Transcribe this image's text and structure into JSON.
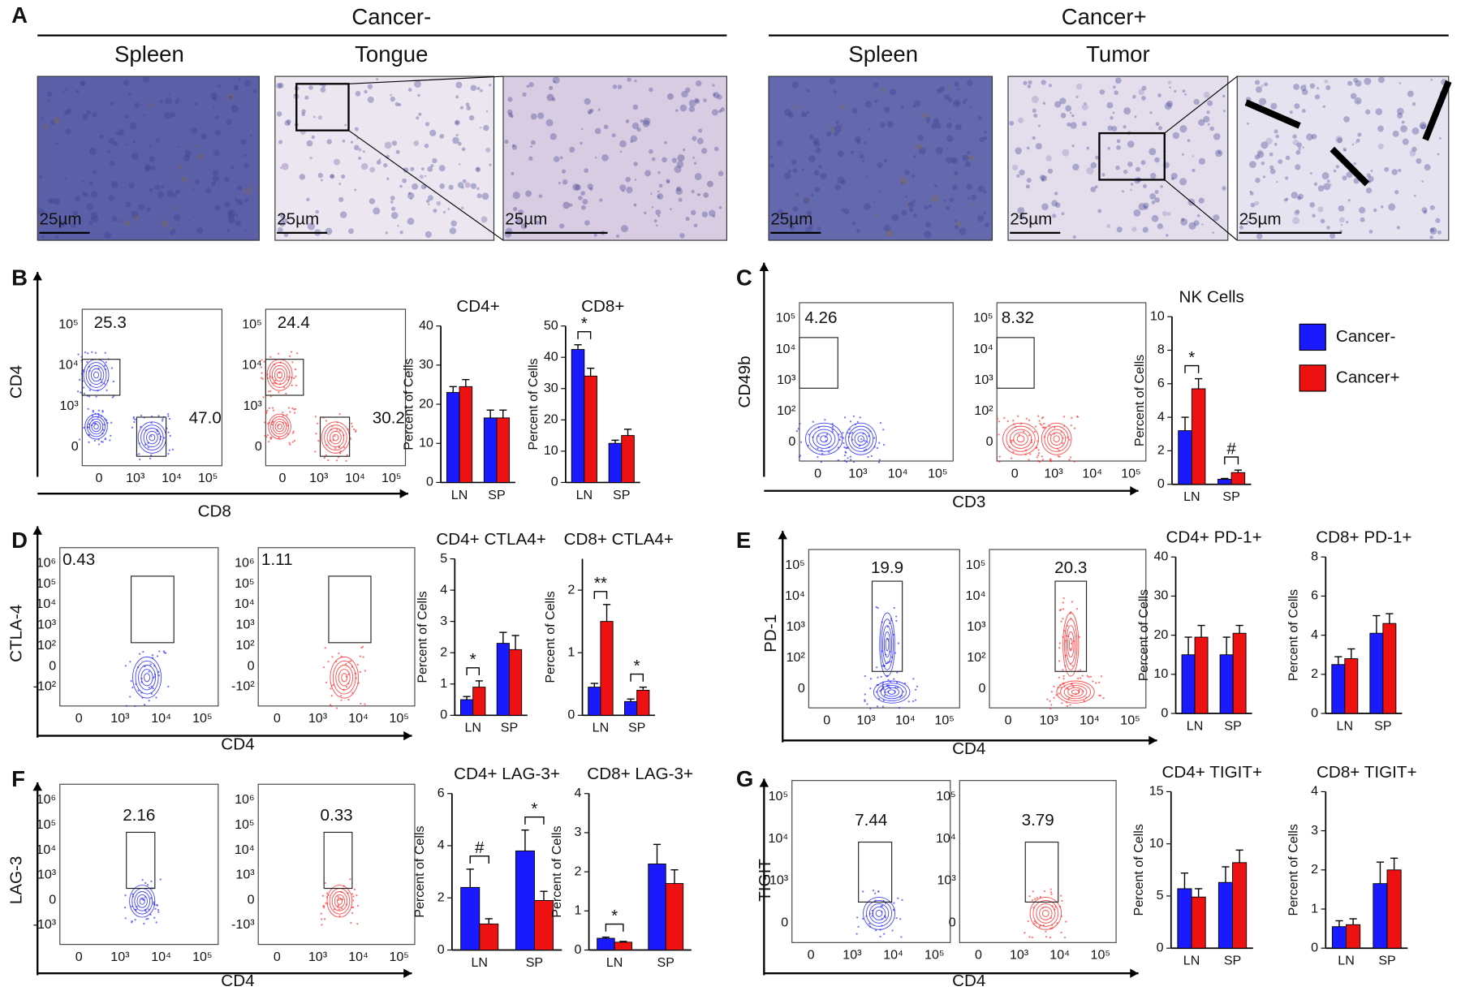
{
  "histology": {
    "label": "A",
    "groups": [
      {
        "title": "Cancer-",
        "tissues": [
          "Spleen",
          "Tongue"
        ]
      },
      {
        "title": "Cancer+",
        "tissues": [
          "Spleen",
          "Tumor"
        ]
      }
    ],
    "scale_bar": "25µm"
  },
  "flow_panels": [
    {
      "label": "B",
      "ylabel": "CD4",
      "xlabel": "CD8",
      "yticks": [
        "10⁵",
        "10⁴",
        "10³",
        "0"
      ],
      "xticks": [
        "0",
        "10³",
        "10⁴",
        "10⁵"
      ],
      "plots": [
        {
          "color": "#1a1aff",
          "gates": [
            "25.3",
            "47.0"
          ]
        },
        {
          "color": "#ff2020",
          "gates": [
            "24.4",
            "30.2"
          ]
        }
      ]
    },
    {
      "label": "C",
      "ylabel": "CD49b",
      "xlabel": "CD3",
      "yticks": [
        "10⁵",
        "10⁴",
        "10³",
        "10²",
        "0"
      ],
      "xticks": [
        "0",
        "10³",
        "10⁴",
        "10⁵"
      ],
      "plots": [
        {
          "color": "#1a1aff",
          "gates": [
            "4.26"
          ]
        },
        {
          "color": "#ff2020",
          "gates": [
            "8.32"
          ]
        }
      ]
    },
    {
      "label": "D",
      "ylabel": "CTLA-4",
      "xlabel": "CD4",
      "yticks": [
        "10⁶",
        "10⁵",
        "10⁴",
        "10³",
        "10²",
        "0",
        "-10²"
      ],
      "xticks": [
        "0",
        "10³",
        "10⁴",
        "10⁵"
      ],
      "plots": [
        {
          "color": "#1a1aff",
          "gates": [
            "0.43"
          ]
        },
        {
          "color": "#ff2020",
          "gates": [
            "1.11"
          ]
        }
      ]
    },
    {
      "label": "E",
      "ylabel": "PD-1",
      "xlabel": "CD4",
      "yticks": [
        "10⁵",
        "10⁴",
        "10³",
        "10²",
        "0"
      ],
      "xticks": [
        "0",
        "10³",
        "10⁴",
        "10⁵"
      ],
      "plots": [
        {
          "color": "#1a1aff",
          "gates": [
            "19.9"
          ]
        },
        {
          "color": "#ff2020",
          "gates": [
            "20.3"
          ]
        }
      ]
    },
    {
      "label": "F",
      "ylabel": "LAG-3",
      "xlabel": "CD4",
      "yticks": [
        "10⁶",
        "10⁵",
        "10⁴",
        "10³",
        "0",
        "-10³"
      ],
      "xticks": [
        "0",
        "10³",
        "10⁴",
        "10⁵"
      ],
      "plots": [
        {
          "color": "#1a1aff",
          "gates": [
            "2.16"
          ]
        },
        {
          "color": "#ff2020",
          "gates": [
            "0.33"
          ]
        }
      ]
    },
    {
      "label": "G",
      "ylabel": "TIGIT",
      "xlabel": "CD4",
      "yticks": [
        "10⁵",
        "10⁴",
        "10³",
        "0"
      ],
      "xticks": [
        "0",
        "10³",
        "10⁴",
        "10⁵"
      ],
      "plots": [
        {
          "color": "#1a1aff",
          "gates": [
            "7.44"
          ]
        },
        {
          "color": "#ff2020",
          "gates": [
            "3.79"
          ]
        }
      ]
    }
  ],
  "chart_data": [
    {
      "type": "bar",
      "title": "CD4+",
      "ylabel": "Percent of Cells",
      "categories": [
        "LN",
        "SP"
      ],
      "ylim": [
        0,
        40
      ],
      "yticks": [
        0,
        10,
        20,
        30,
        40
      ],
      "annotations": [
        null,
        null
      ],
      "series": [
        {
          "name": "Cancer-",
          "color": "#1a1aff",
          "values": [
            23,
            16.5
          ],
          "errors": [
            1.5,
            2
          ]
        },
        {
          "name": "Cancer+",
          "color": "#ee1111",
          "values": [
            24.5,
            16.5
          ],
          "errors": [
            1.8,
            2
          ]
        }
      ]
    },
    {
      "type": "bar",
      "title": "CD8+",
      "ylabel": "Percent of Cells",
      "categories": [
        "LN",
        "SP"
      ],
      "ylim": [
        0,
        50
      ],
      "yticks": [
        0,
        10,
        20,
        30,
        40,
        50
      ],
      "annotations": [
        "*",
        null
      ],
      "series": [
        {
          "name": "Cancer-",
          "color": "#1a1aff",
          "values": [
            42.5,
            12.5
          ],
          "errors": [
            1.5,
            1
          ]
        },
        {
          "name": "Cancer+",
          "color": "#ee1111",
          "values": [
            34,
            15
          ],
          "errors": [
            2.5,
            2
          ]
        }
      ]
    },
    {
      "type": "bar",
      "title": "NK Cells",
      "ylabel": "Percent of Cells",
      "categories": [
        "LN",
        "SP"
      ],
      "ylim": [
        0,
        10
      ],
      "yticks": [
        0,
        2,
        4,
        6,
        8,
        10
      ],
      "annotations": [
        "*",
        "#"
      ],
      "series": [
        {
          "name": "Cancer-",
          "color": "#1a1aff",
          "values": [
            3.2,
            0.3
          ],
          "errors": [
            0.8,
            0.05
          ]
        },
        {
          "name": "Cancer+",
          "color": "#ee1111",
          "values": [
            5.7,
            0.7
          ],
          "errors": [
            0.6,
            0.15
          ]
        }
      ]
    },
    {
      "type": "bar",
      "title": "CD4+ CTLA4+",
      "ylabel": "Percent of Cells",
      "categories": [
        "LN",
        "SP"
      ],
      "ylim": [
        0,
        5
      ],
      "yticks": [
        0,
        1,
        2,
        3,
        4,
        5
      ],
      "annotations": [
        "*",
        null
      ],
      "series": [
        {
          "name": "Cancer-",
          "color": "#1a1aff",
          "values": [
            0.5,
            2.3
          ],
          "errors": [
            0.1,
            0.35
          ]
        },
        {
          "name": "Cancer+",
          "color": "#ee1111",
          "values": [
            0.9,
            2.1
          ],
          "errors": [
            0.2,
            0.45
          ]
        }
      ]
    },
    {
      "type": "bar",
      "title": "CD8+ CTLA4+",
      "ylabel": "Percent of Cells",
      "categories": [
        "LN",
        "SP"
      ],
      "ylim": [
        0,
        2.5
      ],
      "yticks": [
        0,
        1,
        2
      ],
      "annotations": [
        "**",
        "*"
      ],
      "series": [
        {
          "name": "Cancer-",
          "color": "#1a1aff",
          "values": [
            0.45,
            0.22
          ],
          "errors": [
            0.06,
            0.04
          ]
        },
        {
          "name": "Cancer+",
          "color": "#ee1111",
          "values": [
            1.5,
            0.4
          ],
          "errors": [
            0.27,
            0.05
          ]
        }
      ]
    },
    {
      "type": "bar",
      "title": "CD4+ PD-1+",
      "ylabel": "Percent of Cells",
      "categories": [
        "LN",
        "SP"
      ],
      "ylim": [
        0,
        40
      ],
      "yticks": [
        0,
        10,
        20,
        30,
        40
      ],
      "annotations": [
        null,
        null
      ],
      "series": [
        {
          "name": "Cancer-",
          "color": "#1a1aff",
          "values": [
            15,
            15
          ],
          "errors": [
            4.5,
            4.5
          ]
        },
        {
          "name": "Cancer+",
          "color": "#ee1111",
          "values": [
            19.5,
            20.5
          ],
          "errors": [
            3,
            2
          ]
        }
      ]
    },
    {
      "type": "bar",
      "title": "CD8+ PD-1+",
      "ylabel": "Percent of Cells",
      "categories": [
        "LN",
        "SP"
      ],
      "ylim": [
        0,
        8
      ],
      "yticks": [
        0,
        2,
        4,
        6,
        8
      ],
      "annotations": [
        null,
        null
      ],
      "series": [
        {
          "name": "Cancer-",
          "color": "#1a1aff",
          "values": [
            2.5,
            4.1
          ],
          "errors": [
            0.4,
            0.9
          ]
        },
        {
          "name": "Cancer+",
          "color": "#ee1111",
          "values": [
            2.8,
            4.6
          ],
          "errors": [
            0.5,
            0.5
          ]
        }
      ]
    },
    {
      "type": "bar",
      "title": "CD4+ LAG-3+",
      "ylabel": "Percent of Cells",
      "categories": [
        "LN",
        "SP"
      ],
      "ylim": [
        0,
        6
      ],
      "yticks": [
        0,
        2,
        4,
        6
      ],
      "annotations": [
        "#",
        "*"
      ],
      "series": [
        {
          "name": "Cancer-",
          "color": "#1a1aff",
          "values": [
            2.4,
            3.8
          ],
          "errors": [
            0.7,
            0.8
          ]
        },
        {
          "name": "Cancer+",
          "color": "#ee1111",
          "values": [
            1.0,
            1.9
          ],
          "errors": [
            0.2,
            0.35
          ]
        }
      ]
    },
    {
      "type": "bar",
      "title": "CD8+ LAG-3+",
      "ylabel": "Percent of Cells",
      "categories": [
        "LN",
        "SP"
      ],
      "ylim": [
        0,
        4
      ],
      "yticks": [
        0,
        1,
        2,
        3,
        4
      ],
      "annotations": [
        "*",
        null
      ],
      "series": [
        {
          "name": "Cancer-",
          "color": "#1a1aff",
          "values": [
            0.3,
            2.2
          ],
          "errors": [
            0.03,
            0.5
          ]
        },
        {
          "name": "Cancer+",
          "color": "#ee1111",
          "values": [
            0.2,
            1.7
          ],
          "errors": [
            0.02,
            0.35
          ]
        }
      ]
    },
    {
      "type": "bar",
      "title": "CD4+ TIGIT+",
      "ylabel": "Percent of Cells",
      "categories": [
        "LN",
        "SP"
      ],
      "ylim": [
        0,
        15
      ],
      "yticks": [
        0,
        5,
        10,
        15
      ],
      "annotations": [
        null,
        null
      ],
      "series": [
        {
          "name": "Cancer-",
          "color": "#1a1aff",
          "values": [
            5.7,
            6.3
          ],
          "errors": [
            1.5,
            1.5
          ]
        },
        {
          "name": "Cancer+",
          "color": "#ee1111",
          "values": [
            4.9,
            8.2
          ],
          "errors": [
            0.8,
            1.2
          ]
        }
      ]
    },
    {
      "type": "bar",
      "title": "CD8+ TIGIT+",
      "ylabel": "Percent of Cells",
      "categories": [
        "LN",
        "SP"
      ],
      "ylim": [
        0,
        4
      ],
      "yticks": [
        0,
        1,
        2,
        3,
        4
      ],
      "annotations": [
        null,
        null
      ],
      "series": [
        {
          "name": "Cancer-",
          "color": "#1a1aff",
          "values": [
            0.55,
            1.65
          ],
          "errors": [
            0.15,
            0.55
          ]
        },
        {
          "name": "Cancer+",
          "color": "#ee1111",
          "values": [
            0.6,
            2.0
          ],
          "errors": [
            0.15,
            0.3
          ]
        }
      ]
    }
  ]
}
